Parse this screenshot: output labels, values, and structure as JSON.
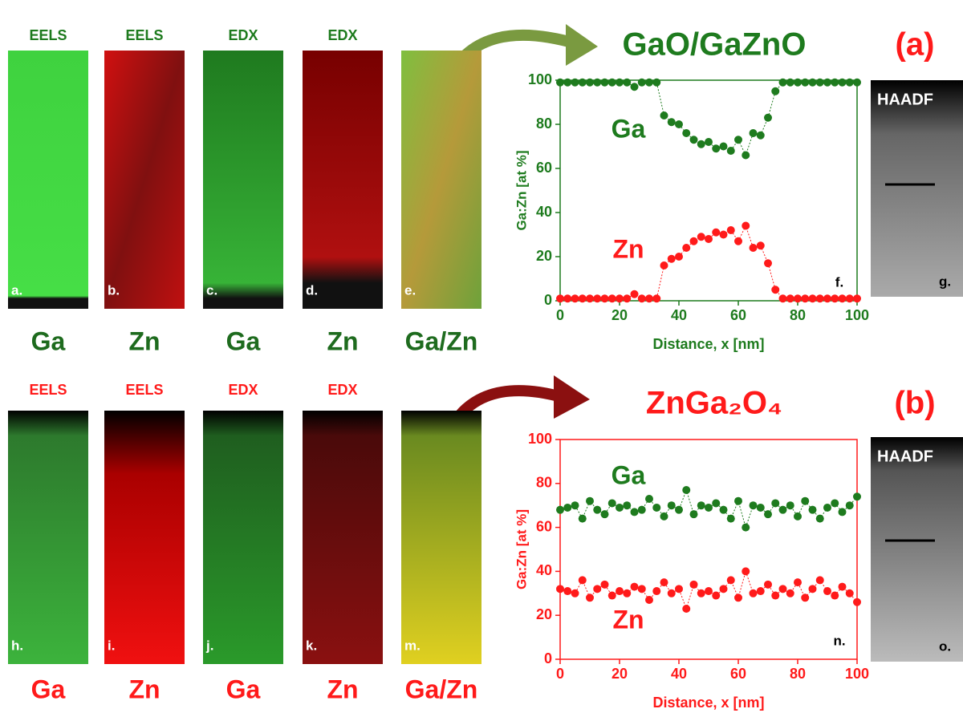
{
  "figure": {
    "rows": [
      {
        "maps": [
          {
            "method": "EELS",
            "letter": "a.",
            "element": "Ga"
          },
          {
            "method": "EELS",
            "letter": "b.",
            "element": "Zn"
          },
          {
            "method": "EDX",
            "letter": "c.",
            "element": "Ga"
          },
          {
            "method": "EDX",
            "letter": "d.",
            "element": "Zn"
          },
          {
            "method": "",
            "letter": "e.",
            "element": "Ga/Zn"
          }
        ],
        "haadf": {
          "label": "HAADF",
          "letter": "g."
        }
      },
      {
        "maps": [
          {
            "method": "EELS",
            "letter": "h.",
            "element": "Ga"
          },
          {
            "method": "EELS",
            "letter": "i.",
            "element": "Zn"
          },
          {
            "method": "EDX",
            "letter": "j.",
            "element": "Ga"
          },
          {
            "method": "EDX",
            "letter": "k.",
            "element": "Zn"
          },
          {
            "method": "",
            "letter": "m.",
            "element": "Ga/Zn"
          }
        ],
        "haadf": {
          "label": "HAADF",
          "letter": "o."
        }
      }
    ]
  },
  "chart_data": [
    {
      "type": "line",
      "title": "GaO/GaZnO",
      "tag": "(a)",
      "annotation": "f.",
      "x_label": "Distance, x [nm]",
      "y_label": "Ga:Zn [at %]",
      "axis_color": "#1e7b1e",
      "x": [
        0,
        2.5,
        5,
        7.5,
        10,
        12.5,
        15,
        17.5,
        20,
        22.5,
        25,
        27.5,
        30,
        32.5,
        35,
        37.5,
        40,
        42.5,
        45,
        47.5,
        50,
        52.5,
        55,
        57.5,
        60,
        62.5,
        65,
        67.5,
        70,
        72.5,
        75,
        77.5,
        80,
        82.5,
        85,
        87.5,
        90,
        92.5,
        95,
        97.5,
        100
      ],
      "series": [
        {
          "name": "Ga",
          "color": "#1e7b1e",
          "values": [
            99,
            99,
            99,
            99,
            99,
            99,
            99,
            99,
            99,
            99,
            97,
            99,
            99,
            99,
            84,
            81,
            80,
            76,
            73,
            71,
            72,
            69,
            70,
            68,
            73,
            66,
            76,
            75,
            83,
            95,
            99,
            99,
            99,
            99,
            99,
            99,
            99,
            99,
            99,
            99,
            99
          ]
        },
        {
          "name": "Zn",
          "color": "#ff1a1a",
          "values": [
            1,
            1,
            1,
            1,
            1,
            1,
            1,
            1,
            1,
            1,
            3,
            1,
            1,
            1,
            16,
            19,
            20,
            24,
            27,
            29,
            28,
            31,
            30,
            32,
            27,
            34,
            24,
            25,
            17,
            5,
            1,
            1,
            1,
            1,
            1,
            1,
            1,
            1,
            1,
            1,
            1
          ]
        }
      ],
      "xlim": [
        0,
        100
      ],
      "xticks": [
        0,
        20,
        40,
        60,
        80,
        100
      ],
      "ylim": [
        0,
        100
      ],
      "yticks": [
        0,
        20,
        40,
        60,
        80,
        100
      ]
    },
    {
      "type": "line",
      "title": "ZnGa₂O₄",
      "tag": "(b)",
      "annotation": "n.",
      "x_label": "Distance, x [nm]",
      "y_label": "Ga:Zn [at %]",
      "axis_color": "#ff1a1a",
      "x": [
        0,
        2.5,
        5,
        7.5,
        10,
        12.5,
        15,
        17.5,
        20,
        22.5,
        25,
        27.5,
        30,
        32.5,
        35,
        37.5,
        40,
        42.5,
        45,
        47.5,
        50,
        52.5,
        55,
        57.5,
        60,
        62.5,
        65,
        67.5,
        70,
        72.5,
        75,
        77.5,
        80,
        82.5,
        85,
        87.5,
        90,
        92.5,
        95,
        97.5,
        100
      ],
      "series": [
        {
          "name": "Ga",
          "color": "#1e7b1e",
          "values": [
            68,
            69,
            70,
            64,
            72,
            68,
            66,
            71,
            69,
            70,
            67,
            68,
            73,
            69,
            65,
            70,
            68,
            77,
            66,
            70,
            69,
            71,
            68,
            64,
            72,
            60,
            70,
            69,
            66,
            71,
            68,
            70,
            65,
            72,
            68,
            64,
            69,
            71,
            67,
            70,
            74
          ]
        },
        {
          "name": "Zn",
          "color": "#ff1a1a",
          "values": [
            32,
            31,
            30,
            36,
            28,
            32,
            34,
            29,
            31,
            30,
            33,
            32,
            27,
            31,
            35,
            30,
            32,
            23,
            34,
            30,
            31,
            29,
            32,
            36,
            28,
            40,
            30,
            31,
            34,
            29,
            32,
            30,
            35,
            28,
            32,
            36,
            31,
            29,
            33,
            30,
            26
          ]
        }
      ],
      "xlim": [
        0,
        100
      ],
      "xticks": [
        0,
        20,
        40,
        60,
        80,
        100
      ],
      "ylim": [
        0,
        100
      ],
      "yticks": [
        0,
        20,
        40,
        60,
        80,
        100
      ]
    }
  ]
}
